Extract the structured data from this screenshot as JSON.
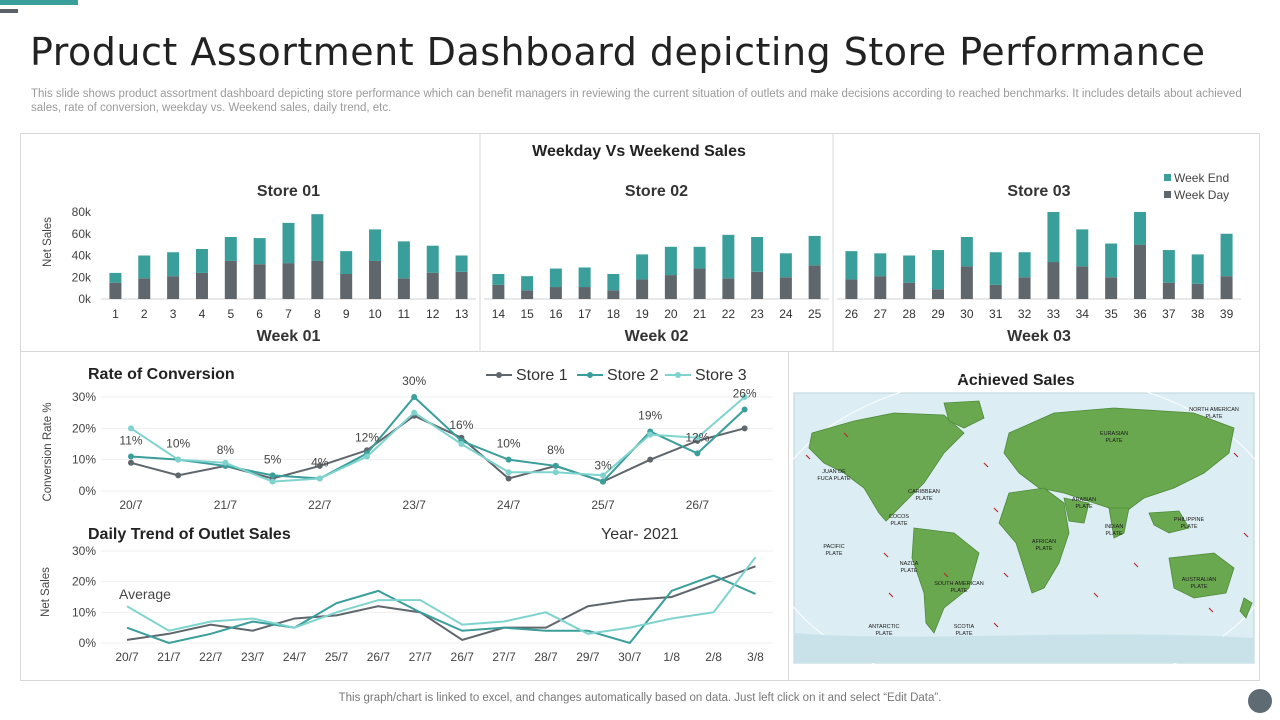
{
  "title": "Product Assortment Dashboard depicting Store Performance",
  "subtitle": "This slide shows product assortment dashboard depicting store performance which can benefit managers in reviewing the current situation of outlets and make decisions according to reached benchmarks. It includes details about achieved sales, rate of conversion, weekday vs. Weekend sales, daily trend, etc.",
  "footer": "This graph/chart is linked to excel,  and changes automatically based on data. Just left click on it and select “Edit Data”.",
  "colors": {
    "teal": "#3a9e9a",
    "gray": "#5f676d",
    "store1": "#5f676d",
    "store2": "#3a9e9a",
    "store3": "#7fd3cf"
  },
  "map": {
    "title": "Achieved Sales",
    "continents": [
      "NORTH AMERICAN PLATE",
      "EURASIAN PLATE",
      "JUAN DE FUCA PLATE",
      "CARIBBEAN PLATE",
      "ARABIAN PLATE",
      "INDIAN PLATE",
      "PHILIPPINE PLATE",
      "PACIFIC PLATE",
      "COCOS PLATE",
      "AFRICAN PLATE",
      "NAZCA PLATE",
      "SOUTH AMERICAN PLATE",
      "AUSTRALIAN PLATE",
      "ANTARCTIC PLATE",
      "SCOTIA PLATE"
    ]
  },
  "chart_data": [
    {
      "type": "bar",
      "title": "Weekday Vs Weekend  Sales",
      "ylabel": "Net Sales",
      "yticks": [
        "0k",
        "20k",
        "40k",
        "60k",
        "80k"
      ],
      "ylim": [
        0,
        80
      ],
      "legend": [
        "Week End",
        "Week Day"
      ],
      "stores": [
        {
          "label": "Store 01",
          "week": "Week 01",
          "categories": [
            "1",
            "2",
            "3",
            "4",
            "5",
            "6",
            "7",
            "8",
            "9",
            "10",
            "11",
            "12",
            "13"
          ],
          "weekday": [
            15,
            19,
            21,
            24,
            35,
            32,
            33,
            35,
            23,
            35,
            19,
            24,
            25
          ],
          "weekend": [
            9,
            21,
            22,
            22,
            22,
            24,
            37,
            43,
            21,
            29,
            34,
            25,
            15
          ]
        },
        {
          "label": "Store 02",
          "week": "Week 02",
          "categories": [
            "14",
            "15",
            "16",
            "17",
            "18",
            "19",
            "20",
            "21",
            "22",
            "23",
            "24",
            "25"
          ],
          "weekday": [
            13,
            8,
            11,
            11,
            8,
            18,
            22,
            28,
            19,
            25,
            20,
            31
          ],
          "weekend": [
            10,
            13,
            17,
            18,
            15,
            23,
            26,
            20,
            40,
            32,
            22,
            27
          ]
        },
        {
          "label": "Store 03",
          "week": "Week 03",
          "categories": [
            "26",
            "27",
            "28",
            "29",
            "30",
            "31",
            "32",
            "33",
            "34",
            "35",
            "36",
            "37",
            "38",
            "39"
          ],
          "weekday": [
            18,
            21,
            15,
            9,
            30,
            13,
            20,
            34,
            30,
            20,
            50,
            15,
            14,
            21
          ],
          "weekend": [
            26,
            21,
            25,
            36,
            27,
            30,
            23,
            46,
            34,
            31,
            30,
            30,
            27,
            39
          ]
        }
      ]
    },
    {
      "type": "line",
      "title": "Rate of Conversion",
      "ylabel": "Conversion  Rate  %",
      "yticks": [
        "0%",
        "10%",
        "20%",
        "30%"
      ],
      "ylim": [
        0,
        30
      ],
      "x_labels": [
        "20/7",
        "21/7",
        "22/7",
        "23/7",
        "24/7",
        "25/7",
        "26/7"
      ],
      "data_labels": [
        "11%",
        "10%",
        "8%",
        "5%",
        "4%",
        "12%",
        "30%",
        "16%",
        "10%",
        "8%",
        "3%",
        "19%",
        "12%",
        "26%"
      ],
      "series": [
        {
          "name": "Store 1",
          "values": [
            9,
            5,
            8,
            4,
            8,
            13,
            24,
            17,
            4,
            8,
            3,
            10,
            16,
            20
          ]
        },
        {
          "name": "Store 2",
          "values": [
            11,
            10,
            8,
            5,
            4,
            12,
            30,
            16,
            10,
            8,
            3,
            19,
            12,
            26
          ]
        },
        {
          "name": "Store 3",
          "values": [
            20,
            10,
            9,
            3,
            4,
            11,
            25,
            15,
            6,
            6,
            5,
            18,
            17,
            30
          ]
        }
      ]
    },
    {
      "type": "line",
      "title": "Daily Trend of Outlet  Sales",
      "annotation": "Year- 2021",
      "note": "Average",
      "ylabel": "Net Sales",
      "yticks": [
        "0%",
        "10%",
        "20%",
        "30%"
      ],
      "ylim": [
        0,
        30
      ],
      "x_labels": [
        "20/7",
        "21/7",
        "22/7",
        "23/7",
        "24/7",
        "25/7",
        "26/7",
        "27/7",
        "26/7",
        "27/7",
        "28/7",
        "29/7",
        "30/7",
        "1/8",
        "2/8",
        "3/8"
      ],
      "series": [
        {
          "values": [
            1,
            3,
            6,
            4,
            8,
            9,
            12,
            10,
            1,
            5,
            5,
            12,
            14,
            15,
            20,
            25
          ]
        },
        {
          "values": [
            5,
            0,
            3,
            7,
            5,
            13,
            17,
            10,
            4,
            5,
            4,
            4,
            0,
            17,
            22,
            16
          ]
        },
        {
          "values": [
            12,
            4,
            7,
            8,
            5,
            10,
            14,
            14,
            6,
            7,
            10,
            3,
            5,
            8,
            10,
            28
          ]
        }
      ]
    }
  ]
}
